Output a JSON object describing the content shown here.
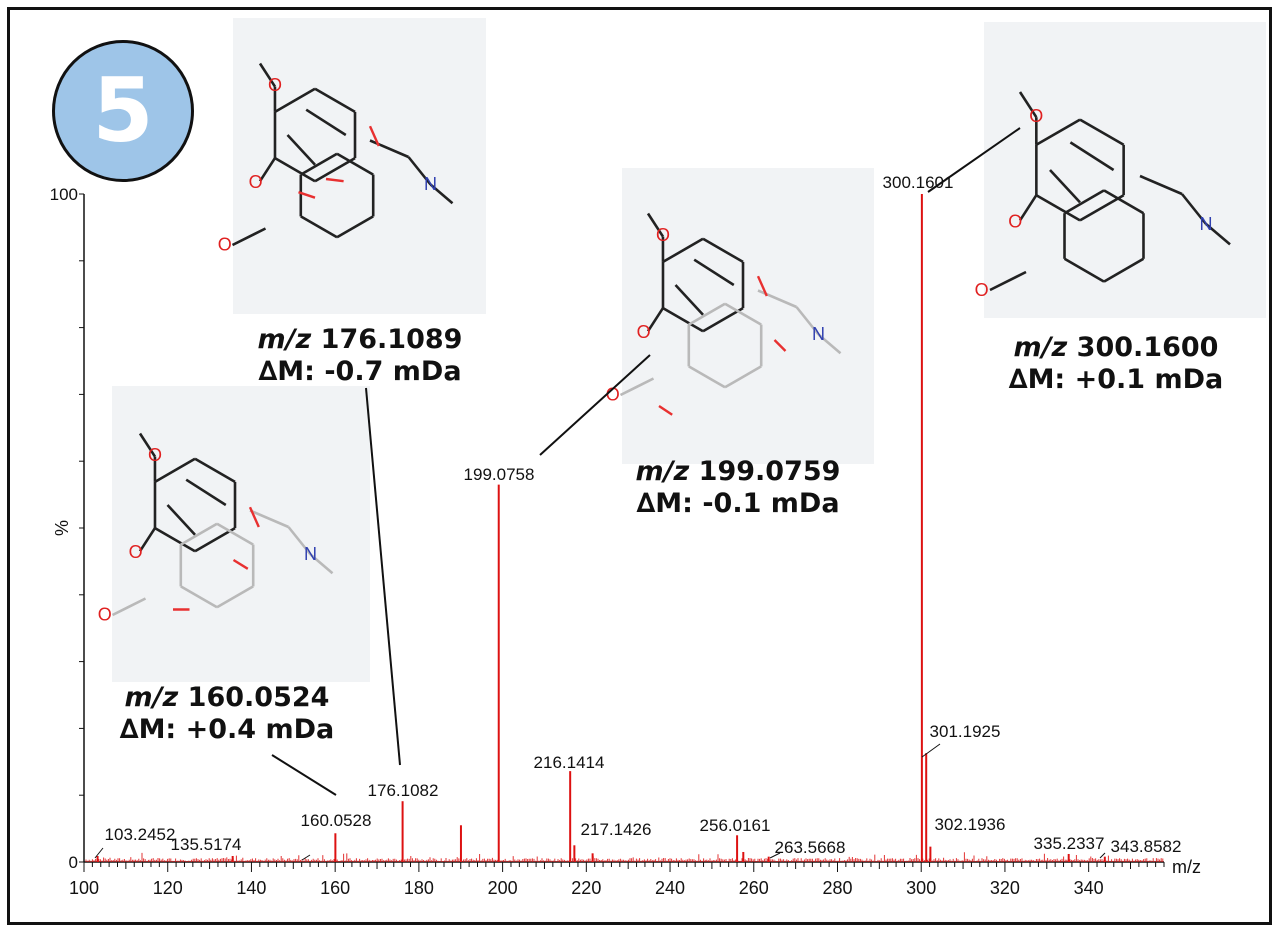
{
  "badge": {
    "number": "5",
    "color": "#9ec5e8"
  },
  "chart_data": {
    "type": "bar",
    "subtype": "mass-spectrum-stick",
    "x_unit": "m/z",
    "y_label": "%",
    "xlim": [
      100,
      358
    ],
    "ylim": [
      0,
      100
    ],
    "x_ticks": [
      100,
      120,
      140,
      160,
      180,
      200,
      220,
      240,
      260,
      280,
      300,
      320,
      340
    ],
    "y_ticks": [
      0,
      100
    ],
    "grid": false,
    "color": "#dd1111",
    "peaks": [
      {
        "mz": 103.2452,
        "intensity": 0.9,
        "label": "103.2452"
      },
      {
        "mz": 135.5174,
        "intensity": 0.9,
        "label": "135.5174"
      },
      {
        "mz": 160.0528,
        "intensity": 4.3,
        "label": "160.0528"
      },
      {
        "mz": 176.1082,
        "intensity": 9.1,
        "label": "176.1082"
      },
      {
        "mz": 190.05,
        "intensity": 5.5,
        "label": ""
      },
      {
        "mz": 199.0758,
        "intensity": 56.5,
        "label": "199.0758"
      },
      {
        "mz": 216.1414,
        "intensity": 13.6,
        "label": "216.1414"
      },
      {
        "mz": 217.1426,
        "intensity": 2.5,
        "label": "217.1426"
      },
      {
        "mz": 221.5,
        "intensity": 1.3,
        "label": ""
      },
      {
        "mz": 256.0161,
        "intensity": 4.0,
        "label": "256.0161"
      },
      {
        "mz": 257.5,
        "intensity": 1.5,
        "label": ""
      },
      {
        "mz": 263.5668,
        "intensity": 0.8,
        "label": "263.5668"
      },
      {
        "mz": 300.1601,
        "intensity": 100,
        "label": "300.1601"
      },
      {
        "mz": 301.1925,
        "intensity": 16.3,
        "label": "301.1925"
      },
      {
        "mz": 302.1936,
        "intensity": 2.3,
        "label": "302.1936"
      },
      {
        "mz": 335.2337,
        "intensity": 1.2,
        "label": "335.2337"
      },
      {
        "mz": 343.8582,
        "intensity": 0.8,
        "label": "343.8582"
      }
    ]
  },
  "fragments": [
    {
      "mz_prefix": "m/z",
      "mz_value": "176.1089",
      "delta": "∆M: -0.7 mDa"
    },
    {
      "mz_prefix": "m/z",
      "mz_value": "160.0524",
      "delta": "∆M: +0.4 mDa"
    },
    {
      "mz_prefix": "m/z",
      "mz_value": "199.0759",
      "delta": "∆M: -0.1 mDa"
    },
    {
      "mz_prefix": "m/z",
      "mz_value": "300.1600",
      "delta": "∆M: +0.1 mDa"
    }
  ],
  "atoms": {
    "oxygen": "O",
    "nitrogen": "N"
  }
}
